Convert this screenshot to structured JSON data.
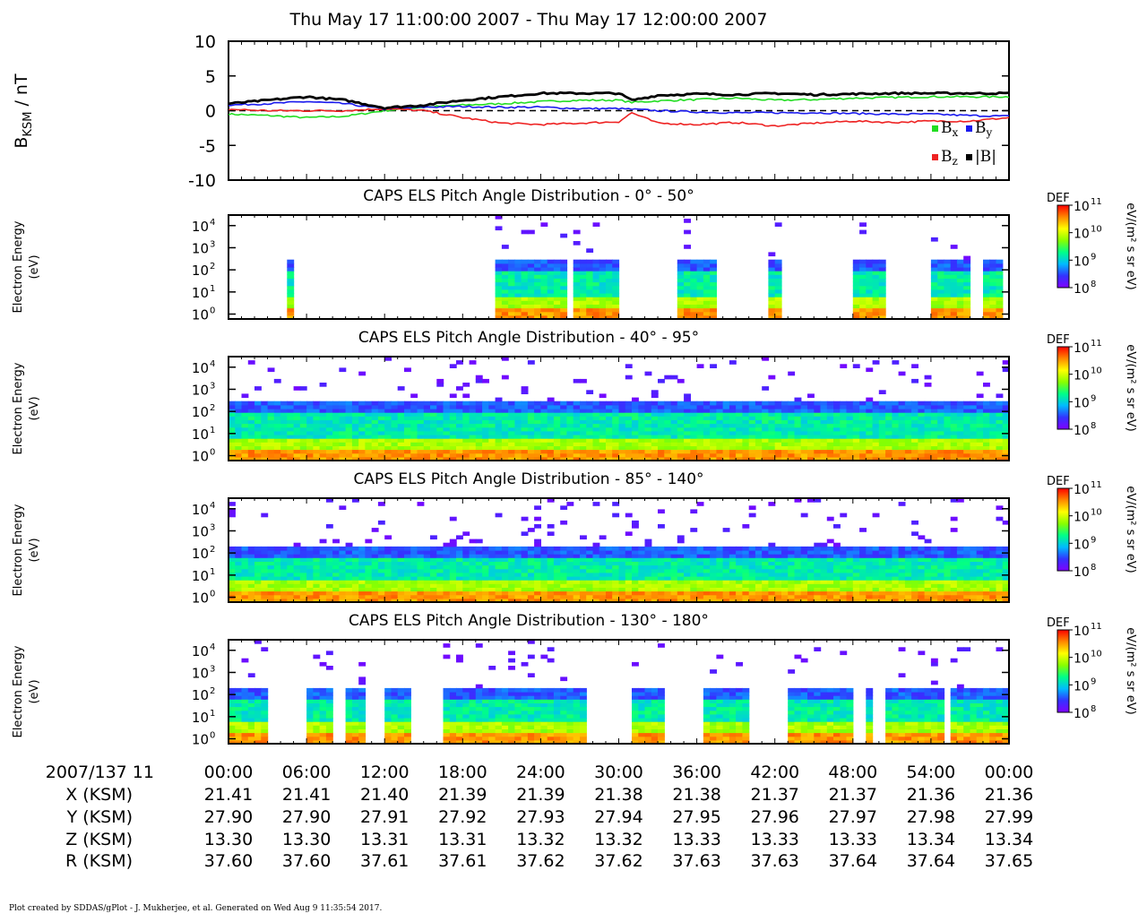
{
  "title": "Thu May 17 11:00:00 2007 - Thu May 17 12:00:00 2007",
  "footer": "Plot created by SDDAS/gPlot - J. Mukherjee, et al.  Generated on Wed Aug 9 11:35:54 2017.",
  "colors": {
    "bx": "#22dd22",
    "by": "#1a1aee",
    "bz": "#ee2222",
    "bmag": "#000000",
    "colorbar": [
      "#8000ff",
      "#3333ff",
      "#00bbff",
      "#00ff88",
      "#88ff00",
      "#ffff00",
      "#ff8800",
      "#ff0000"
    ]
  },
  "chart_data": [
    {
      "type": "line",
      "ylabel_main": "B",
      "ylabel_sub": "KSM",
      "ylabel_unit": " / nT",
      "ylim": [
        -10,
        10
      ],
      "yticks": [
        "10",
        "5",
        "0",
        "-5",
        "-10"
      ],
      "xlim_minutes": [
        0,
        60
      ],
      "zero_line": "dashed",
      "legend": [
        {
          "key": "bx",
          "sym": "B",
          "sub": "x"
        },
        {
          "key": "by",
          "sym": "B",
          "sub": "y"
        },
        {
          "key": "bz",
          "sym": "B",
          "sub": "z"
        },
        {
          "key": "bmag",
          "sym": "|B|",
          "sub": ""
        }
      ],
      "x": [
        0,
        3,
        6,
        9,
        12,
        15,
        18,
        21,
        24,
        27,
        30,
        31,
        33,
        36,
        39,
        42,
        45,
        48,
        51,
        54,
        57,
        60
      ],
      "series": [
        {
          "key": "bx",
          "values": [
            -0.5,
            -0.7,
            -1.0,
            -0.8,
            0.0,
            0.5,
            0.8,
            1.0,
            1.3,
            1.5,
            1.5,
            1.2,
            1.4,
            1.6,
            1.8,
            1.5,
            1.6,
            1.8,
            1.9,
            2.0,
            2.0,
            2.0
          ]
        },
        {
          "key": "by",
          "values": [
            0.8,
            1.0,
            1.3,
            1.0,
            0.2,
            0.5,
            0.6,
            0.5,
            0.5,
            0.3,
            0.3,
            0.2,
            0.0,
            -0.2,
            -0.3,
            -0.3,
            -0.3,
            -0.4,
            -0.5,
            -0.5,
            -0.7,
            -0.8
          ]
        },
        {
          "key": "bz",
          "values": [
            0.2,
            0.0,
            0.0,
            0.0,
            0.3,
            0.0,
            -1.0,
            -1.8,
            -2.0,
            -1.8,
            -1.6,
            -0.3,
            -1.8,
            -2.0,
            -1.7,
            -2.2,
            -1.8,
            -1.5,
            -1.7,
            -1.5,
            -1.5,
            -1.0
          ]
        },
        {
          "key": "bmag",
          "values": [
            1.0,
            1.5,
            2.0,
            1.5,
            0.4,
            0.8,
            1.5,
            2.0,
            2.5,
            2.5,
            2.5,
            1.5,
            2.2,
            2.4,
            2.3,
            2.5,
            2.3,
            2.4,
            2.5,
            2.5,
            2.5,
            2.5
          ]
        }
      ]
    },
    {
      "type": "heatmap",
      "title": "CAPS ELS Pitch Angle Distribution - 0° - 50°",
      "ylabel": [
        "Electron Energy",
        "(eV)"
      ],
      "yaxis": "log",
      "ylim_eV": [
        0.6,
        30000
      ],
      "yticks_exp": [
        "0",
        "1",
        "2",
        "3",
        "4"
      ],
      "x_columns": 120,
      "active_minutes": [
        [
          4.5,
          5.0
        ],
        [
          14.5,
          14.6
        ],
        [
          20.5,
          26.0
        ],
        [
          26.5,
          30.0
        ],
        [
          34.5,
          37.0
        ],
        [
          37.2,
          37.6
        ],
        [
          41.5,
          42.5
        ],
        [
          48.0,
          50.5
        ],
        [
          54.0,
          57.0
        ],
        [
          58.0,
          59.5
        ]
      ],
      "top_energy_exp": 2.5,
      "colorbar": {
        "label": "DEF",
        "unit": "eV/(m² s sr eV)",
        "ticks_exp": [
          "11",
          "10",
          "9",
          "8"
        ]
      }
    },
    {
      "type": "heatmap",
      "title": "CAPS ELS Pitch Angle Distribution - 40° - 95°",
      "ylabel": [
        "Electron Energy",
        "(eV)"
      ],
      "yaxis": "log",
      "ylim_eV": [
        0.6,
        30000
      ],
      "yticks_exp": [
        "0",
        "1",
        "2",
        "3",
        "4"
      ],
      "x_columns": 120,
      "active_minutes": [
        [
          0,
          60
        ]
      ],
      "top_energy_exp": 2.4,
      "colorbar": {
        "label": "DEF",
        "unit": "eV/(m² s sr eV)",
        "ticks_exp": [
          "11",
          "10",
          "9",
          "8"
        ]
      }
    },
    {
      "type": "heatmap",
      "title": "CAPS ELS Pitch Angle Distribution - 85° - 140°",
      "ylabel": [
        "Electron Energy",
        "(eV)"
      ],
      "yaxis": "log",
      "ylim_eV": [
        0.6,
        30000
      ],
      "yticks_exp": [
        "0",
        "1",
        "2",
        "3",
        "4"
      ],
      "x_columns": 120,
      "active_minutes": [
        [
          0,
          60
        ]
      ],
      "top_energy_exp": 2.3,
      "colorbar": {
        "label": "DEF",
        "unit": "eV/(m² s sr eV)",
        "ticks_exp": [
          "11",
          "10",
          "9",
          "8"
        ]
      }
    },
    {
      "type": "heatmap",
      "title": "CAPS ELS Pitch Angle Distribution - 130° - 180°",
      "ylabel": [
        "Electron Energy",
        "(eV)"
      ],
      "yaxis": "log",
      "ylim_eV": [
        0.6,
        30000
      ],
      "yticks_exp": [
        "0",
        "1",
        "2",
        "3",
        "4"
      ],
      "x_columns": 120,
      "active_minutes": [
        [
          0,
          3.0
        ],
        [
          6.0,
          7.8
        ],
        [
          9.0,
          10.5
        ],
        [
          12.2,
          14.0
        ],
        [
          16.5,
          22.0
        ],
        [
          22.0,
          27.5
        ],
        [
          31.0,
          33.5
        ],
        [
          36.5,
          40.0
        ],
        [
          43.0,
          48.0
        ],
        [
          49.0,
          49.6
        ],
        [
          50.5,
          55.0
        ],
        [
          55.5,
          60.0
        ]
      ],
      "top_energy_exp": 2.3,
      "colorbar": {
        "label": "DEF",
        "unit": "eV/(m² s sr eV)",
        "ticks_exp": [
          "11",
          "10",
          "9",
          "8"
        ]
      }
    },
    {
      "type": "table",
      "time_header": "2007/137 11",
      "times": [
        "00:00",
        "06:00",
        "12:00",
        "18:00",
        "24:00",
        "30:00",
        "36:00",
        "42:00",
        "48:00",
        "54:00",
        "00:00"
      ],
      "rows": [
        {
          "label": "X (KSM)",
          "values": [
            "21.41",
            "21.41",
            "21.40",
            "21.39",
            "21.39",
            "21.38",
            "21.38",
            "21.37",
            "21.37",
            "21.36",
            "21.36"
          ]
        },
        {
          "label": "Y (KSM)",
          "values": [
            "27.90",
            "27.90",
            "27.91",
            "27.92",
            "27.93",
            "27.94",
            "27.95",
            "27.96",
            "27.97",
            "27.98",
            "27.99"
          ]
        },
        {
          "label": "Z (KSM)",
          "values": [
            "13.30",
            "13.30",
            "13.31",
            "13.31",
            "13.32",
            "13.32",
            "13.33",
            "13.33",
            "13.33",
            "13.34",
            "13.34"
          ]
        },
        {
          "label": "R (KSM)",
          "values": [
            "37.60",
            "37.60",
            "37.61",
            "37.61",
            "37.62",
            "37.62",
            "37.63",
            "37.63",
            "37.64",
            "37.64",
            "37.65"
          ]
        }
      ]
    }
  ]
}
